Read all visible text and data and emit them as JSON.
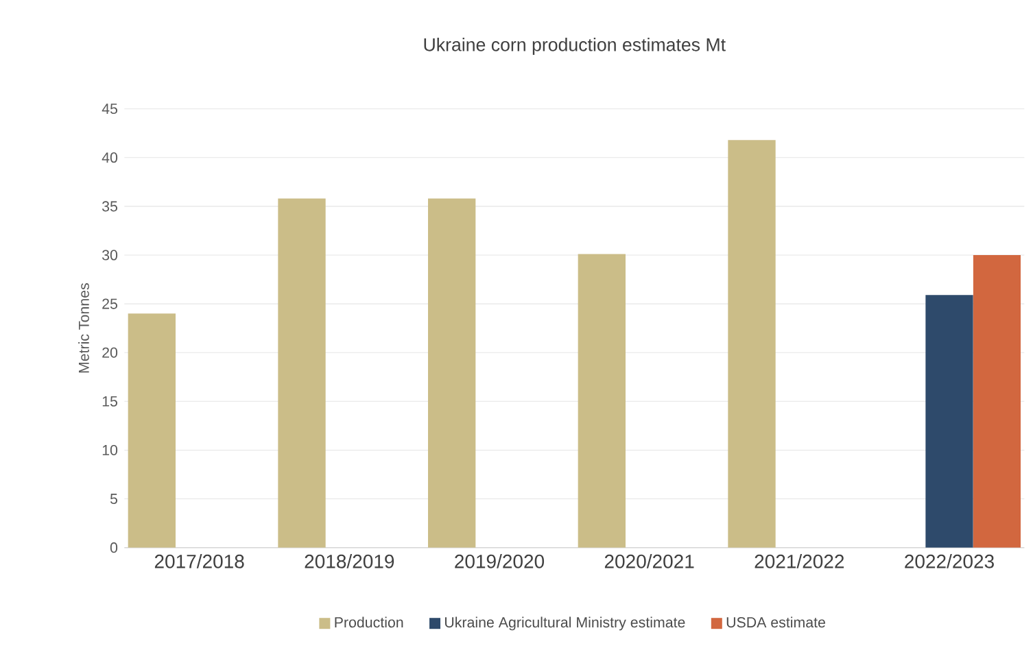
{
  "chart_data": {
    "type": "bar",
    "title": "Ukraine corn production estimates Mt",
    "ylabel": "Metric Tonnes",
    "categories": [
      "2017/2018",
      "2018/2019",
      "2019/2020",
      "2020/2021",
      "2021/2022",
      "2022/2023"
    ],
    "series": [
      {
        "name": "Production",
        "color": "#cbbd88",
        "values": [
          24,
          35.8,
          35.8,
          30.1,
          41.8,
          null
        ]
      },
      {
        "name": "Ukraine Agricultural Ministry estimate",
        "color": "#2e4a6b",
        "values": [
          null,
          null,
          null,
          null,
          null,
          25.9
        ]
      },
      {
        "name": "USDA estimate",
        "color": "#d2673f",
        "values": [
          null,
          null,
          null,
          null,
          null,
          30
        ]
      }
    ],
    "ylim": [
      0,
      45
    ],
    "yticks": [
      0,
      5,
      10,
      15,
      20,
      25,
      30,
      35,
      40,
      45
    ],
    "grid": "y",
    "legend": "bottom"
  }
}
